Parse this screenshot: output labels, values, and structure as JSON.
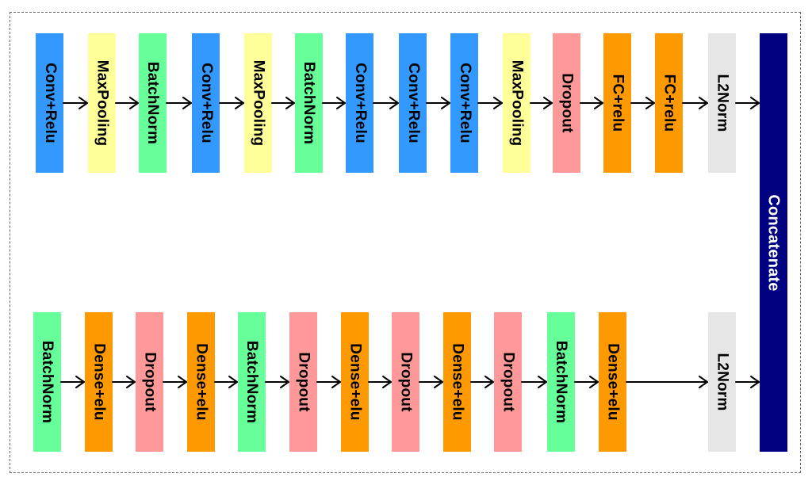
{
  "diagram": {
    "top_row": [
      {
        "label": "Conv+Relu",
        "color": "#3399ff"
      },
      {
        "label": "MaxPooling",
        "color": "#ffff99"
      },
      {
        "label": "BatchNorm",
        "color": "#66ff99"
      },
      {
        "label": "Conv+Relu",
        "color": "#3399ff"
      },
      {
        "label": "MaxPooling",
        "color": "#ffff99"
      },
      {
        "label": "BatchNorm",
        "color": "#66ff99"
      },
      {
        "label": "Conv+Relu",
        "color": "#3399ff"
      },
      {
        "label": "Conv+Relu",
        "color": "#3399ff"
      },
      {
        "label": "Conv+Relu",
        "color": "#3399ff"
      },
      {
        "label": "MaxPooling",
        "color": "#ffff99"
      },
      {
        "label": "Dropout",
        "color": "#ff9999"
      },
      {
        "label": "FC+relu",
        "color": "#ff9900"
      },
      {
        "label": "FC+relu",
        "color": "#ff9900"
      },
      {
        "label": "L2Norm",
        "color": "#e6e6e6"
      }
    ],
    "bottom_row": [
      {
        "label": "BatchNorm",
        "color": "#66ff99"
      },
      {
        "label": "Dense+elu",
        "color": "#ff9900"
      },
      {
        "label": "Dropout",
        "color": "#ff9999"
      },
      {
        "label": "Dense+elu",
        "color": "#ff9900"
      },
      {
        "label": "BatchNorm",
        "color": "#66ff99"
      },
      {
        "label": "Dropout",
        "color": "#ff9999"
      },
      {
        "label": "Dense+elu",
        "color": "#ff9900"
      },
      {
        "label": "Dropout",
        "color": "#ff9999"
      },
      {
        "label": "Dense+elu",
        "color": "#ff9900"
      },
      {
        "label": "Dropout",
        "color": "#ff9999"
      },
      {
        "label": "BatchNorm",
        "color": "#66ff99"
      },
      {
        "label": "Dense+elu",
        "color": "#ff9900"
      },
      {
        "label": "L2Norm",
        "color": "#e6e6e6"
      }
    ],
    "concat": {
      "label": "Concatenate",
      "color": "#000080"
    }
  }
}
